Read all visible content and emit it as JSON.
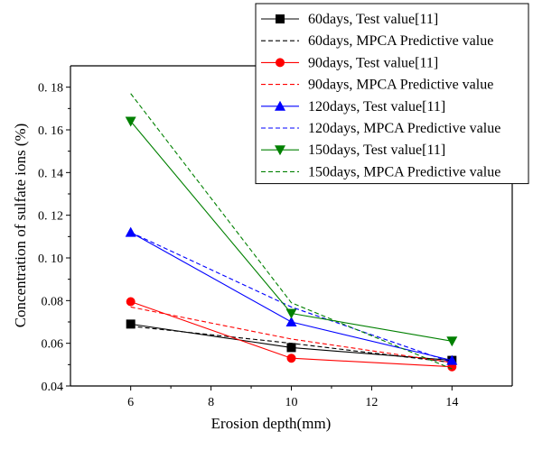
{
  "chart_data": {
    "type": "line",
    "title": "",
    "xlabel": "Erosion depth(mm)",
    "ylabel": "Concentration of sulfate ions (%)",
    "xlim": [
      4.5,
      15.5
    ],
    "ylim": [
      0.04,
      0.19
    ],
    "xticks": [
      6,
      8,
      10,
      12,
      14
    ],
    "yticks": [
      0.04,
      0.06,
      0.08,
      0.1,
      0.12,
      0.14,
      0.16,
      0.18
    ],
    "xtick_labels": [
      "6",
      "8",
      "10",
      "12",
      "14"
    ],
    "ytick_labels": [
      "0.04",
      "0.06",
      "0.08",
      "0. 10",
      "0. 12",
      "0. 14",
      "0. 16",
      "0. 18"
    ],
    "grid": false,
    "legend_position": "top-right",
    "series": [
      {
        "name": "60days, Test value[11]",
        "color": "#000000",
        "dash": "solid",
        "marker": "square",
        "x": [
          6,
          10,
          14
        ],
        "y": [
          0.069,
          0.058,
          0.052
        ]
      },
      {
        "name": "60days, MPCA Predictive value",
        "color": "#000000",
        "dash": "dashed",
        "marker": "none",
        "x": [
          6,
          10,
          14
        ],
        "y": [
          0.068,
          0.06,
          0.051
        ]
      },
      {
        "name": "90days, Test value[11]",
        "color": "#ff0000",
        "dash": "solid",
        "marker": "circle",
        "x": [
          6,
          10,
          14
        ],
        "y": [
          0.0795,
          0.053,
          0.049
        ]
      },
      {
        "name": "90days, MPCA Predictive value",
        "color": "#ff0000",
        "dash": "dashed",
        "marker": "none",
        "x": [
          6,
          10,
          14
        ],
        "y": [
          0.077,
          0.062,
          0.051
        ]
      },
      {
        "name": "120days, Test value[11]",
        "color": "#0000ff",
        "dash": "solid",
        "marker": "triangle-up",
        "x": [
          6,
          10,
          14
        ],
        "y": [
          0.112,
          0.07,
          0.052
        ]
      },
      {
        "name": "120days, MPCA Predictive value",
        "color": "#0000ff",
        "dash": "dashed",
        "marker": "none",
        "x": [
          6,
          10,
          14
        ],
        "y": [
          0.112,
          0.077,
          0.051
        ]
      },
      {
        "name": "150days, Test value[11]",
        "color": "#008000",
        "dash": "solid",
        "marker": "triangle-down",
        "x": [
          6,
          10,
          14
        ],
        "y": [
          0.164,
          0.074,
          0.061
        ]
      },
      {
        "name": "150days, MPCA Predictive value",
        "color": "#008000",
        "dash": "dashed",
        "marker": "none",
        "x": [
          6,
          10,
          14
        ],
        "y": [
          0.177,
          0.079,
          0.048
        ]
      }
    ]
  }
}
